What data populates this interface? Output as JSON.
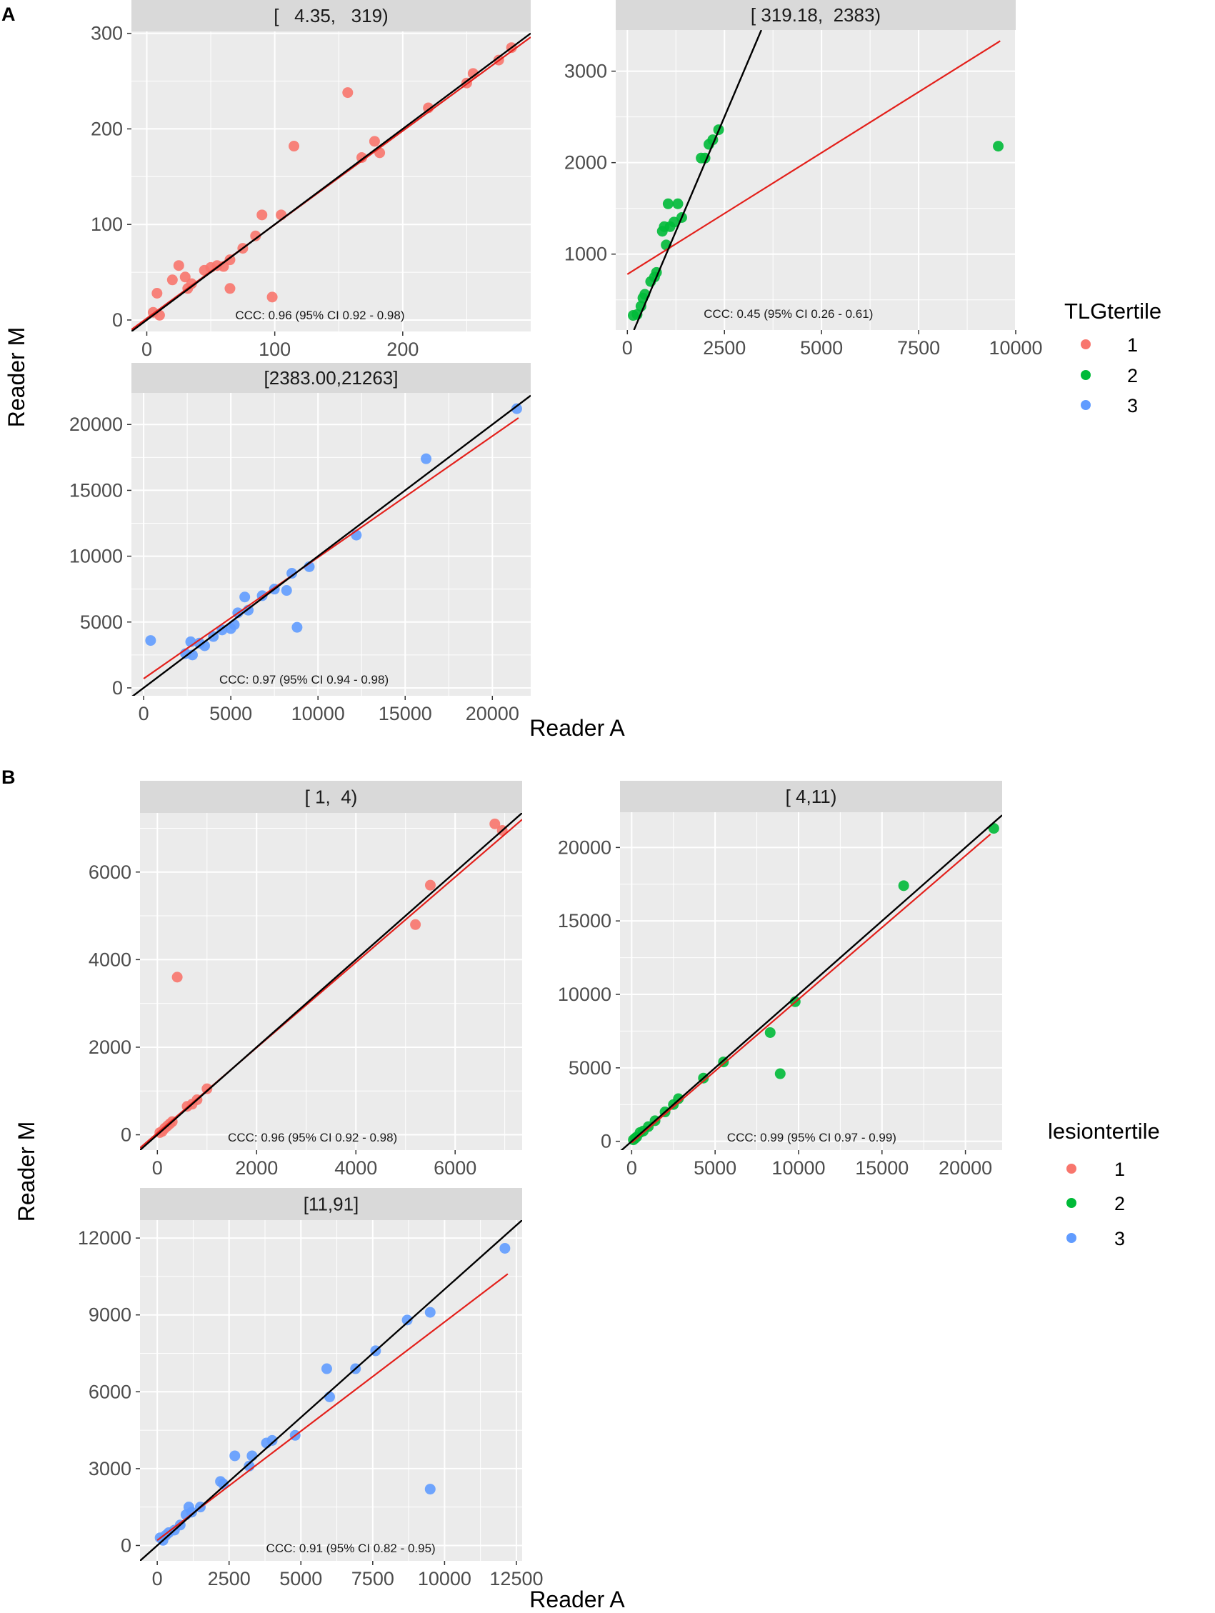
{
  "colors": {
    "group1": "#f8766d",
    "group2": "#00ba38",
    "group3": "#619cff",
    "fit": "#e3201b",
    "identity": "#000000",
    "panel_bg": "#ebebeb",
    "strip_bg": "#d9d9d9",
    "grid": "#ffffff"
  },
  "figure_labels": {
    "a": "A",
    "b": "B"
  },
  "axis_titles": {
    "a_x": "Reader A",
    "a_y": "Reader M",
    "b_x": "Reader A",
    "b_y": "Reader M"
  },
  "legends": {
    "a": {
      "title": "TLGtertile",
      "items": [
        {
          "label": "1",
          "color": "#f8766d"
        },
        {
          "label": "2",
          "color": "#00ba38"
        },
        {
          "label": "3",
          "color": "#619cff"
        }
      ]
    },
    "b": {
      "title": "lesiontertile",
      "items": [
        {
          "label": "1",
          "color": "#f8766d"
        },
        {
          "label": "2",
          "color": "#00ba38"
        },
        {
          "label": "3",
          "color": "#619cff"
        }
      ]
    }
  },
  "chart_data": [
    {
      "id": "a1",
      "type": "scatter",
      "title": "[   4.35,   319)",
      "xlabel": "Reader A",
      "ylabel": "Reader M",
      "xlim": [
        -12,
        300
      ],
      "ylim": [
        -12,
        302
      ],
      "xticks": [
        0,
        100,
        200
      ],
      "yticks": [
        0,
        100,
        200,
        300
      ],
      "ccc": "CCC: 0.96 (95% CI 0.92 - 0.98)",
      "ccc_pos": [
        0.26,
        0.04
      ],
      "color": "#f8766d",
      "fit": {
        "x": [
          -12,
          300
        ],
        "y": [
          -10,
          296
        ]
      },
      "identity": {
        "x": [
          -12,
          300
        ],
        "y": [
          -12,
          300
        ]
      },
      "points": [
        [
          5,
          8
        ],
        [
          10,
          5
        ],
        [
          8,
          28
        ],
        [
          20,
          42
        ],
        [
          25,
          57
        ],
        [
          30,
          45
        ],
        [
          32,
          33
        ],
        [
          35,
          38
        ],
        [
          45,
          52
        ],
        [
          50,
          55
        ],
        [
          55,
          57
        ],
        [
          60,
          56
        ],
        [
          65,
          63
        ],
        [
          65,
          33
        ],
        [
          75,
          75
        ],
        [
          85,
          88
        ],
        [
          90,
          110
        ],
        [
          98,
          24
        ],
        [
          105,
          110
        ],
        [
          115,
          182
        ],
        [
          157,
          238
        ],
        [
          168,
          170
        ],
        [
          178,
          187
        ],
        [
          182,
          175
        ],
        [
          220,
          222
        ],
        [
          250,
          248
        ],
        [
          255,
          258
        ],
        [
          275,
          272
        ],
        [
          285,
          285
        ]
      ]
    },
    {
      "id": "a2",
      "type": "scatter",
      "title": "[ 319.18,  2383)",
      "xlabel": "Reader A",
      "ylabel": "Reader M",
      "xlim": [
        -300,
        10000
      ],
      "ylim": [
        170,
        3450
      ],
      "xticks": [
        0,
        2500,
        5000,
        7500,
        10000
      ],
      "xtick_labels": [
        "0",
        "2500",
        "5000",
        "7500",
        "10000"
      ],
      "yticks": [
        1000,
        2000,
        3000
      ],
      "ccc": "CCC: 0.45 (95% CI 0.26 - 0.61)",
      "ccc_pos": [
        0.22,
        0.04
      ],
      "color": "#00ba38",
      "fit": {
        "x": [
          0,
          9600
        ],
        "y": [
          780,
          3330
        ]
      },
      "identity": {
        "x": [
          170,
          3450
        ],
        "y": [
          170,
          3450
        ]
      },
      "points": [
        [
          150,
          330
        ],
        [
          250,
          340
        ],
        [
          350,
          430
        ],
        [
          400,
          520
        ],
        [
          450,
          560
        ],
        [
          600,
          700
        ],
        [
          700,
          750
        ],
        [
          750,
          800
        ],
        [
          900,
          1250
        ],
        [
          950,
          1300
        ],
        [
          1000,
          1100
        ],
        [
          1050,
          1550
        ],
        [
          1100,
          1300
        ],
        [
          1200,
          1350
        ],
        [
          1300,
          1550
        ],
        [
          1400,
          1400
        ],
        [
          1900,
          2050
        ],
        [
          2000,
          2050
        ],
        [
          2100,
          2200
        ],
        [
          2200,
          2250
        ],
        [
          2350,
          2360
        ],
        [
          9550,
          2180
        ]
      ]
    },
    {
      "id": "a3",
      "type": "scatter",
      "title": "[2383.00,21263]",
      "xlabel": "Reader A",
      "ylabel": "Reader M",
      "xlim": [
        -700,
        22200
      ],
      "ylim": [
        -600,
        22400
      ],
      "xticks": [
        0,
        5000,
        10000,
        15000,
        20000
      ],
      "yticks": [
        0,
        5000,
        10000,
        15000,
        20000
      ],
      "ccc": "CCC: 0.97 (95% CI 0.94 - 0.98)",
      "ccc_pos": [
        0.22,
        0.04
      ],
      "color": "#619cff",
      "fit": {
        "x": [
          0,
          21500
        ],
        "y": [
          700,
          20500
        ]
      },
      "identity": {
        "x": [
          -700,
          22200
        ],
        "y": [
          -700,
          22200
        ]
      },
      "points": [
        [
          400,
          3600
        ],
        [
          2400,
          2600
        ],
        [
          2700,
          3500
        ],
        [
          2800,
          2500
        ],
        [
          3200,
          3400
        ],
        [
          3500,
          3200
        ],
        [
          4000,
          3900
        ],
        [
          4500,
          4400
        ],
        [
          5000,
          4500
        ],
        [
          5200,
          4800
        ],
        [
          5400,
          5700
        ],
        [
          5800,
          6900
        ],
        [
          6000,
          5900
        ],
        [
          6800,
          7000
        ],
        [
          7500,
          7500
        ],
        [
          8200,
          7400
        ],
        [
          8500,
          8700
        ],
        [
          8800,
          4600
        ],
        [
          9500,
          9200
        ],
        [
          12200,
          11600
        ],
        [
          16200,
          17400
        ],
        [
          21400,
          21200
        ]
      ]
    },
    {
      "id": "b1",
      "type": "scatter",
      "title": "[ 1,  4)",
      "xlabel": "Reader A",
      "ylabel": "Reader M",
      "xlim": [
        -350,
        7350
      ],
      "ylim": [
        -350,
        7350
      ],
      "xticks": [
        0,
        2000,
        4000,
        6000
      ],
      "yticks": [
        0,
        2000,
        4000,
        6000
      ],
      "ccc": "CCC: 0.96 (95% CI 0.92 - 0.98)",
      "ccc_pos": [
        0.23,
        0.025
      ],
      "color": "#f8766d",
      "fit": {
        "x": [
          -350,
          7350
        ],
        "y": [
          -300,
          7200
        ]
      },
      "identity": {
        "x": [
          -350,
          7350
        ],
        "y": [
          -350,
          7350
        ]
      },
      "points": [
        [
          50,
          50
        ],
        [
          100,
          80
        ],
        [
          150,
          150
        ],
        [
          200,
          200
        ],
        [
          250,
          250
        ],
        [
          300,
          300
        ],
        [
          400,
          3600
        ],
        [
          600,
          650
        ],
        [
          700,
          700
        ],
        [
          800,
          800
        ],
        [
          1000,
          1050
        ],
        [
          5200,
          4800
        ],
        [
          5500,
          5700
        ],
        [
          6800,
          7100
        ],
        [
          6950,
          6950
        ]
      ]
    },
    {
      "id": "b2",
      "type": "scatter",
      "title": "[ 4,11)",
      "xlabel": "Reader A",
      "ylabel": "Reader M",
      "xlim": [
        -700,
        22200
      ],
      "ylim": [
        -600,
        22400
      ],
      "xticks": [
        0,
        5000,
        10000,
        15000,
        20000
      ],
      "yticks": [
        0,
        5000,
        10000,
        15000,
        20000
      ],
      "ccc": "CCC: 0.99 (95% CI 0.97 - 0.99)",
      "ccc_pos": [
        0.28,
        0.025
      ],
      "color": "#00ba38",
      "fit": {
        "x": [
          0,
          21500
        ],
        "y": [
          -100,
          20900
        ]
      },
      "identity": {
        "x": [
          -700,
          22200
        ],
        "y": [
          -700,
          22200
        ]
      },
      "points": [
        [
          100,
          100
        ],
        [
          200,
          200
        ],
        [
          300,
          300
        ],
        [
          500,
          600
        ],
        [
          700,
          700
        ],
        [
          1000,
          1000
        ],
        [
          1400,
          1400
        ],
        [
          2000,
          2000
        ],
        [
          2500,
          2500
        ],
        [
          2800,
          2900
        ],
        [
          4300,
          4300
        ],
        [
          5500,
          5400
        ],
        [
          8300,
          7400
        ],
        [
          8900,
          4600
        ],
        [
          9800,
          9500
        ],
        [
          16300,
          17400
        ],
        [
          21700,
          21300
        ]
      ]
    },
    {
      "id": "b3",
      "type": "scatter",
      "title": "[11,91]",
      "xlabel": "Reader A",
      "ylabel": "Reader M",
      "xlim": [
        -600,
        12700
      ],
      "ylim": [
        -600,
        12700
      ],
      "xticks": [
        0,
        2500,
        5000,
        7500,
        10000,
        12500
      ],
      "yticks": [
        0,
        3000,
        6000,
        9000,
        12000
      ],
      "ccc": "CCC: 0.91 (95% CI 0.82 - 0.95)",
      "ccc_pos": [
        0.33,
        0.025
      ],
      "color": "#619cff",
      "fit": {
        "x": [
          0,
          12200
        ],
        "y": [
          200,
          10600
        ]
      },
      "identity": {
        "x": [
          -600,
          12700
        ],
        "y": [
          -600,
          12700
        ]
      },
      "points": [
        [
          100,
          300
        ],
        [
          200,
          200
        ],
        [
          300,
          400
        ],
        [
          400,
          500
        ],
        [
          600,
          600
        ],
        [
          800,
          800
        ],
        [
          1000,
          1200
        ],
        [
          1100,
          1500
        ],
        [
          1200,
          1300
        ],
        [
          1500,
          1500
        ],
        [
          2200,
          2500
        ],
        [
          2300,
          2400
        ],
        [
          2700,
          3500
        ],
        [
          3200,
          3100
        ],
        [
          3300,
          3500
        ],
        [
          3800,
          4000
        ],
        [
          4000,
          4100
        ],
        [
          4800,
          4300
        ],
        [
          5900,
          6900
        ],
        [
          6000,
          5800
        ],
        [
          6900,
          6900
        ],
        [
          7600,
          7600
        ],
        [
          8700,
          8800
        ],
        [
          9500,
          9100
        ],
        [
          9500,
          2200
        ],
        [
          12100,
          11600
        ]
      ]
    }
  ]
}
